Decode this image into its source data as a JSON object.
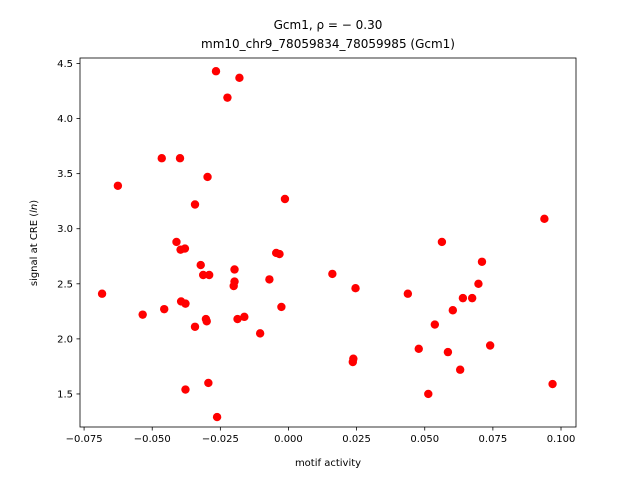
{
  "chart_data": {
    "type": "scatter",
    "title_line1": "Gcm1, ρ = − 0.30",
    "title_line2": "mm10_chr9_78059834_78059985 (Gcm1)",
    "xlabel": "motif activity",
    "ylabel_prefix": "signal at CRE (",
    "ylabel_italic": "ln",
    "ylabel_suffix": ")",
    "xlim": [
      -0.0765,
      0.1055
    ],
    "ylim": [
      1.2,
      4.55
    ],
    "xticks": [
      {
        "value": -0.075,
        "label": "−0.075"
      },
      {
        "value": -0.05,
        "label": "−0.050"
      },
      {
        "value": -0.025,
        "label": "−0.025"
      },
      {
        "value": 0.0,
        "label": "0.000"
      },
      {
        "value": 0.025,
        "label": "0.025"
      },
      {
        "value": 0.05,
        "label": "0.050"
      },
      {
        "value": 0.075,
        "label": "0.075"
      },
      {
        "value": 0.1,
        "label": "0.100"
      }
    ],
    "yticks": [
      {
        "value": 1.5,
        "label": "1.5"
      },
      {
        "value": 2.0,
        "label": "2.0"
      },
      {
        "value": 2.5,
        "label": "2.5"
      },
      {
        "value": 3.0,
        "label": "3.0"
      },
      {
        "value": 3.5,
        "label": "3.5"
      },
      {
        "value": 4.0,
        "label": "4.0"
      },
      {
        "value": 4.5,
        "label": "4.5"
      }
    ],
    "grid": false,
    "marker_color": "#ff0000",
    "points": [
      [
        -0.0684,
        2.41
      ],
      [
        -0.0626,
        3.39
      ],
      [
        -0.0535,
        2.22
      ],
      [
        -0.0465,
        3.64
      ],
      [
        -0.0456,
        2.27
      ],
      [
        -0.0411,
        2.88
      ],
      [
        -0.0398,
        3.64
      ],
      [
        -0.0396,
        2.81
      ],
      [
        -0.0394,
        2.34
      ],
      [
        -0.038,
        2.82
      ],
      [
        -0.0378,
        2.32
      ],
      [
        -0.0378,
        1.54
      ],
      [
        -0.0343,
        3.22
      ],
      [
        -0.0343,
        2.11
      ],
      [
        -0.0322,
        2.67
      ],
      [
        -0.0313,
        2.58
      ],
      [
        -0.0303,
        2.18
      ],
      [
        -0.03,
        2.16
      ],
      [
        -0.0297,
        3.47
      ],
      [
        -0.0294,
        1.6
      ],
      [
        -0.0291,
        2.58
      ],
      [
        -0.0266,
        4.43
      ],
      [
        -0.0262,
        1.29
      ],
      [
        -0.0224,
        4.19
      ],
      [
        -0.0201,
        2.48
      ],
      [
        -0.0198,
        2.63
      ],
      [
        -0.0198,
        2.52
      ],
      [
        -0.0187,
        2.18
      ],
      [
        -0.018,
        4.37
      ],
      [
        -0.0162,
        2.2
      ],
      [
        -0.0104,
        2.05
      ],
      [
        -0.007,
        2.54
      ],
      [
        -0.0045,
        2.78
      ],
      [
        -0.0033,
        2.77
      ],
      [
        -0.0026,
        2.29
      ],
      [
        -0.0013,
        3.27
      ],
      [
        0.0161,
        2.59
      ],
      [
        0.0236,
        1.79
      ],
      [
        0.0238,
        1.82
      ],
      [
        0.0246,
        2.46
      ],
      [
        0.0438,
        2.41
      ],
      [
        0.0478,
        1.91
      ],
      [
        0.0513,
        1.5
      ],
      [
        0.0537,
        2.13
      ],
      [
        0.0563,
        2.88
      ],
      [
        0.0585,
        1.88
      ],
      [
        0.0603,
        2.26
      ],
      [
        0.063,
        1.72
      ],
      [
        0.064,
        2.37
      ],
      [
        0.0674,
        2.37
      ],
      [
        0.0697,
        2.5
      ],
      [
        0.071,
        2.7
      ],
      [
        0.074,
        1.94
      ],
      [
        0.0939,
        3.09
      ],
      [
        0.0969,
        1.59
      ]
    ]
  }
}
